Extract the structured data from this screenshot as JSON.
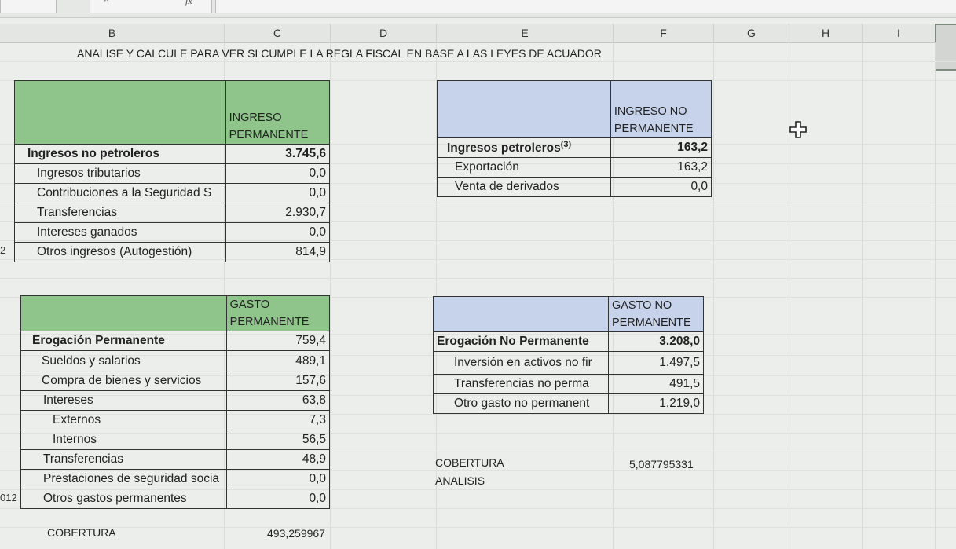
{
  "toolbar": {
    "fx": "fx",
    "cancel": "×",
    "confirm": "✓"
  },
  "columns": [
    "B",
    "C",
    "D",
    "E",
    "F",
    "G",
    "H",
    "I"
  ],
  "title": "ANALISE Y CALCULE PARA VER SI CUMPLE LA REGLA FISCAL EN BASE A LAS LEYES DE ACUADOR",
  "row_fragments": {
    "r1": "2",
    "r2": "012"
  },
  "income_perm": {
    "header": "INGRESO PERMANENTE",
    "total_label": "Ingresos no petroleros",
    "total_value": "3.745,6",
    "rows": [
      {
        "label": "Ingresos tributarios",
        "value": "0,0"
      },
      {
        "label": "Contribuciones a la Seguridad S",
        "value": "0,0"
      },
      {
        "label": "Transferencias",
        "value": "2.930,7"
      },
      {
        "label": "Intereses ganados",
        "value": "0,0"
      },
      {
        "label": "Otros ingresos (Autogestión)",
        "value": "814,9"
      }
    ]
  },
  "income_nonperm": {
    "header": "INGRESO NO PERMANENTE",
    "total_label": "Ingresos petroleros",
    "total_sup": "(3)",
    "total_value": "163,2",
    "rows": [
      {
        "label": "Exportación",
        "value": "163,2"
      },
      {
        "label": "Venta de derivados",
        "value": "0,0"
      }
    ]
  },
  "spend_perm": {
    "header": "GASTO PERMANENTE",
    "total_label": "Erogación Permanente",
    "total_value": "759,4",
    "rows": [
      {
        "label": "Sueldos y salarios",
        "value": "489,1"
      },
      {
        "label": "Compra de bienes y servicios",
        "value": "157,6"
      },
      {
        "label": "Intereses",
        "value": "63,8"
      },
      {
        "label": "Externos",
        "value": "7,3"
      },
      {
        "label": "Internos",
        "value": "56,5"
      },
      {
        "label": "Transferencias",
        "value": "48,9"
      },
      {
        "label": "Prestaciones de seguridad socia",
        "value": "0,0"
      },
      {
        "label": "Otros gastos permanentes",
        "value": "0,0"
      }
    ]
  },
  "spend_nonperm": {
    "header": "GASTO NO PERMANENTE",
    "total_label": "Erogación No Permanente",
    "total_value": "3.208,0",
    "rows": [
      {
        "label": "Inversión en activos no fir",
        "value": "1.497,5"
      },
      {
        "label": "Transferencias no perma",
        "value": "491,5"
      },
      {
        "label": "Otro gasto no permanent",
        "value": "1.219,0"
      }
    ]
  },
  "coverage_right": {
    "label": "COBERTURA",
    "value": "5,087795331",
    "analysis_label": "ANALISIS"
  },
  "coverage_left": {
    "label": "COBERTURA",
    "value": "493,259967"
  }
}
